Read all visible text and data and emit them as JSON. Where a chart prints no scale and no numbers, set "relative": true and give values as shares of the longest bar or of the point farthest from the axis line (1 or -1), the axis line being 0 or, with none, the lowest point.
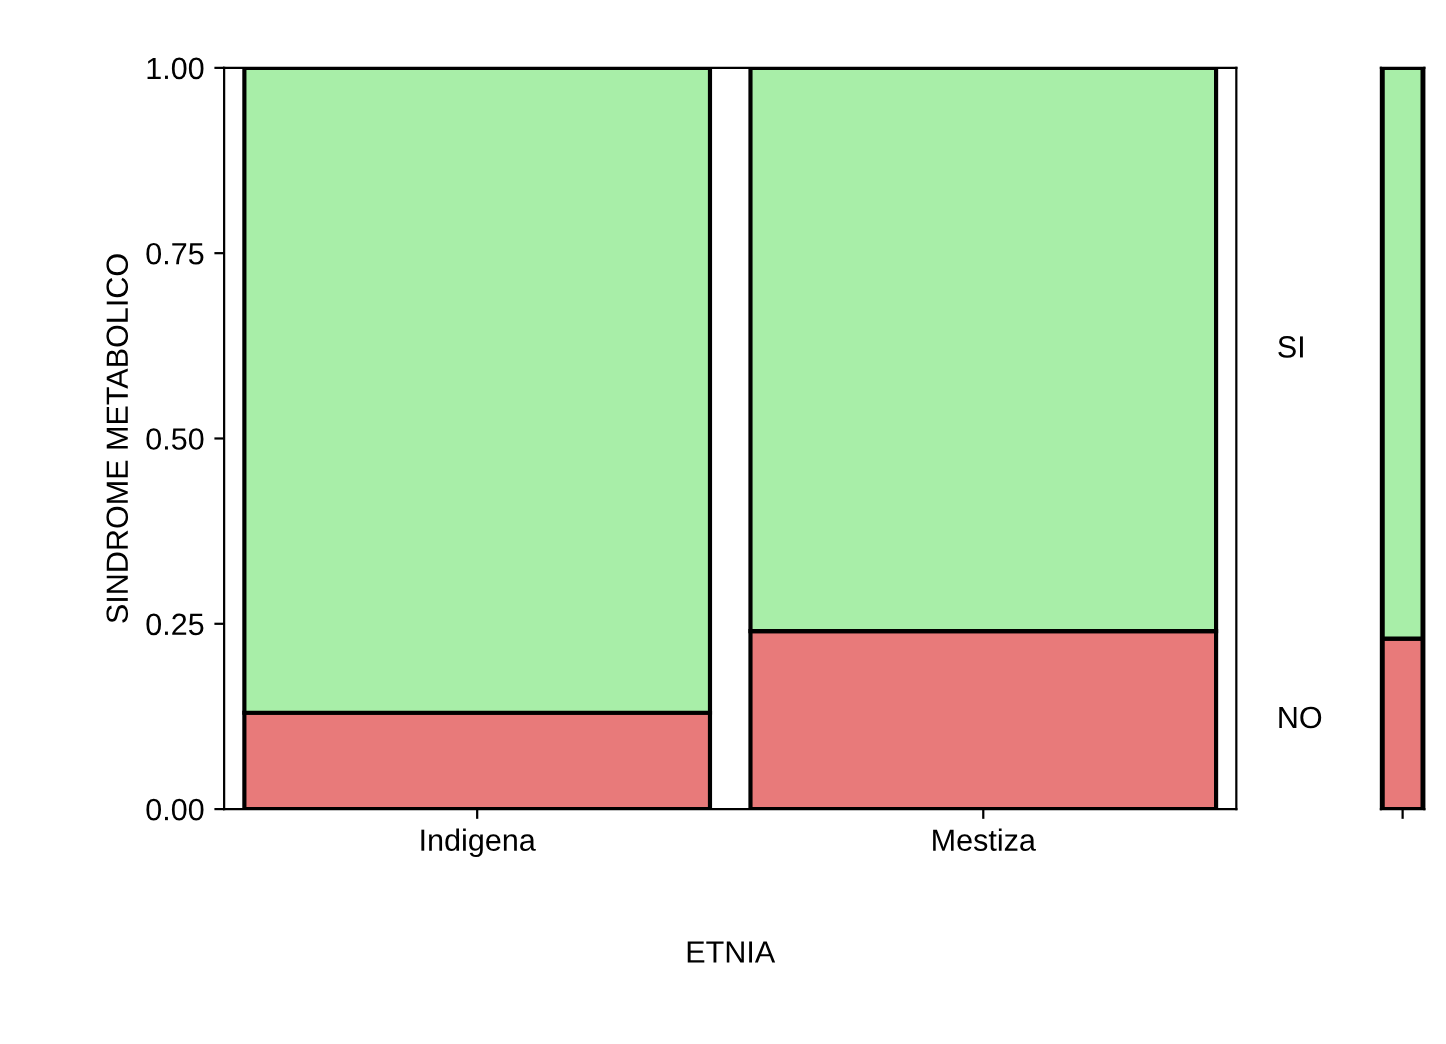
{
  "chart_data": [
    {
      "type": "bar",
      "stacked": true,
      "xlabel": "ETNIA",
      "ylabel": "SINDROME METABOLICO",
      "categories": [
        "Indigena",
        "Mestiza"
      ],
      "ylim": [
        0,
        1
      ],
      "yticks": [
        {
          "value": 0,
          "label": "0.00"
        },
        {
          "value": 0.25,
          "label": "0.25"
        },
        {
          "value": 0.5,
          "label": "0.50"
        },
        {
          "value": 0.75,
          "label": "0.75"
        },
        {
          "value": 1,
          "label": "1.00"
        }
      ],
      "grid": false,
      "legend": false,
      "series": [
        {
          "name": "NO",
          "color": "#e87a7a",
          "values": [
            0.13,
            0.24
          ]
        },
        {
          "name": "SI",
          "color": "#a8eea8",
          "values": [
            0.87,
            0.76
          ]
        }
      ]
    },
    {
      "type": "bar",
      "stacked": true,
      "relative": true,
      "categories": [
        null
      ],
      "grid": false,
      "legend": false,
      "series": [
        {
          "color": "#e87a7a",
          "values": [
            0.23
          ]
        },
        {
          "color": "#a8eea8",
          "values": [
            0.77
          ]
        }
      ]
    }
  ]
}
